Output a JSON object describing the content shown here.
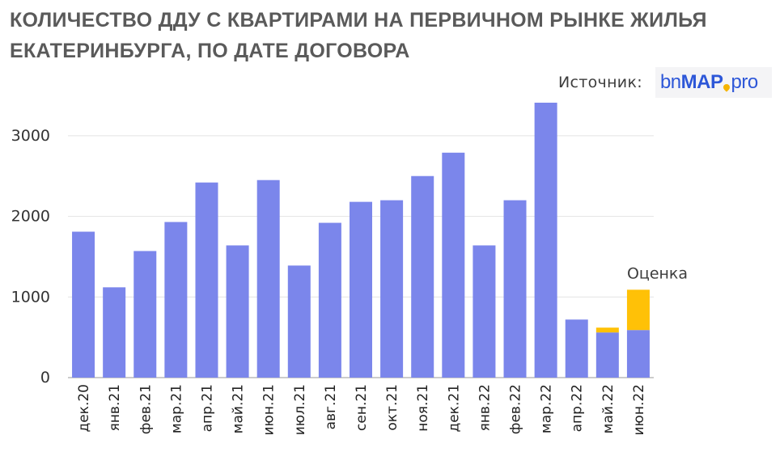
{
  "chart_data": {
    "type": "bar",
    "title": "КОЛИЧЕСТВО ДДУ С КВАРТИРАМИ НА ПЕРВИЧНОМ РЫНКЕ ЖИЛЬЯ ЕКАТЕРИНБУРГА, ПО ДАТЕ ДОГОВОРА",
    "source_label": "Источник:",
    "source_logo": "bnMAP.pro",
    "categories": [
      "дек.20",
      "янв.21",
      "фев.21",
      "мар.21",
      "апр.21",
      "май.21",
      "июн.21",
      "июл.21",
      "авг.21",
      "сен.21",
      "окт.21",
      "ноя.21",
      "дек.21",
      "янв.22",
      "фев.22",
      "мар.22",
      "апр.22",
      "май.22",
      "июн.22"
    ],
    "series": [
      {
        "values": [
          1810,
          1120,
          1570,
          1930,
          2420,
          1640,
          2450,
          1390,
          1920,
          2180,
          2200,
          2500,
          2790,
          1640,
          2200,
          3410,
          720,
          560,
          590
        ],
        "color": "#7b86eb"
      },
      {
        "values": [
          0,
          0,
          0,
          0,
          0,
          0,
          0,
          0,
          0,
          0,
          0,
          0,
          0,
          0,
          0,
          0,
          0,
          60,
          500
        ],
        "color": "#ffc107"
      }
    ],
    "stacked": true,
    "annotation": "Оценка",
    "yticks": [
      0,
      1000,
      2000,
      3000
    ],
    "ylim": [
      0,
      3450
    ],
    "grid": true,
    "legend": "none"
  }
}
